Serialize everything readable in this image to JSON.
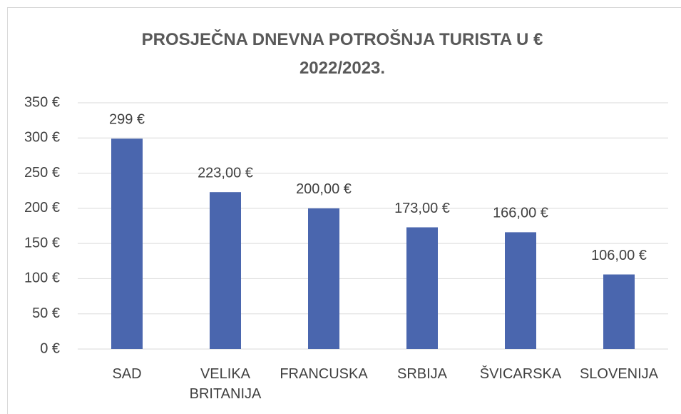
{
  "chart_data": {
    "type": "bar",
    "title": "PROSJEČNA DNEVNA POTROŠNJA  TURISTA U € 2022/2023.",
    "categories": [
      "SAD",
      "VELIKA BRITANIJA",
      "FRANCUSKA",
      "SRBIJA",
      "ŠVICARSKA",
      "SLOVENIJA"
    ],
    "values": [
      299,
      223,
      200,
      173,
      166,
      106
    ],
    "value_labels": [
      "299 €",
      "223,00 €",
      "200,00 €",
      "173,00 €",
      "166,00 €",
      "106,00 €"
    ],
    "color": "#4a66ae",
    "ylim": [
      0,
      350
    ],
    "yticks": [
      {
        "value": 0,
        "label": "0 €"
      },
      {
        "value": 50,
        "label": "50 €"
      },
      {
        "value": 100,
        "label": "100 €"
      },
      {
        "value": 150,
        "label": "150 €"
      },
      {
        "value": 200,
        "label": "200 €"
      },
      {
        "value": 250,
        "label": "250 €"
      },
      {
        "value": 300,
        "label": "300 €"
      },
      {
        "value": 350,
        "label": "350 €"
      }
    ],
    "grid": true
  }
}
